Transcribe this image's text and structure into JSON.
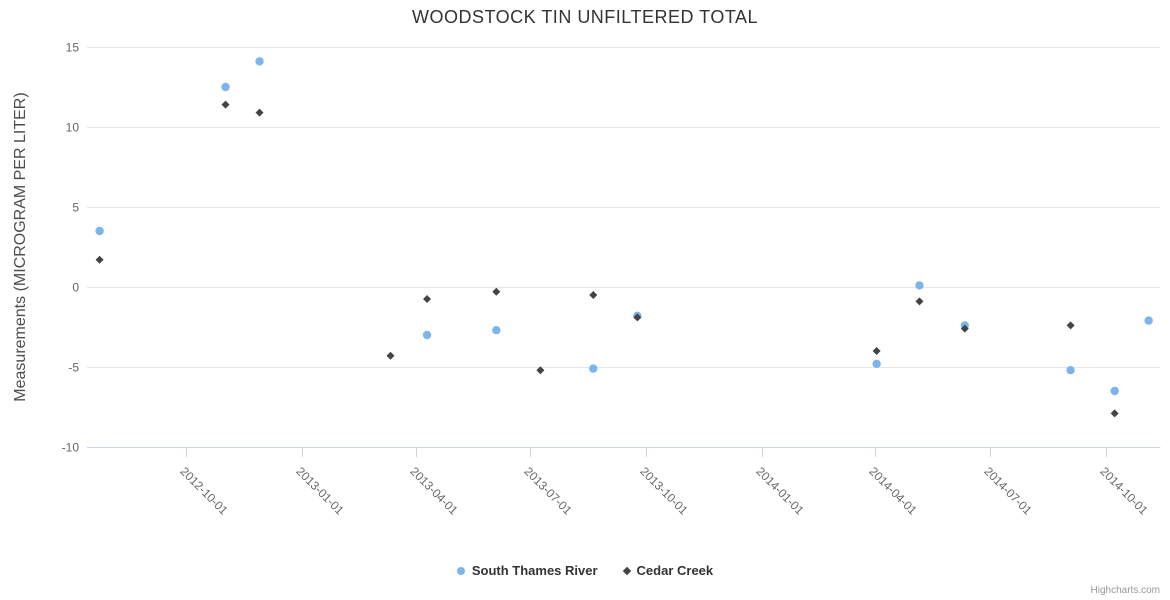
{
  "title": "WOODSTOCK TIN UNFILTERED TOTAL",
  "credit_label": "Highcharts.com",
  "colors": {
    "title": "#333333",
    "axis_title": "#4d4d4d",
    "tick_label": "#666666",
    "grid_line": "#e6e6e6",
    "axis_line": "#ccd6eb",
    "legend_text": "#333333",
    "credit": "#999999",
    "south_thames": "#7cb5ec",
    "cedar_creek": "#434348"
  },
  "chart_data": {
    "type": "scatter",
    "title": "WOODSTOCK TIN UNFILTERED TOTAL",
    "xlabel": "",
    "ylabel": "Measurements (MICROGRAM PER LITER)",
    "ylim": [
      -10,
      15
    ],
    "y_ticks": [
      15,
      10,
      5,
      0,
      -5,
      -10
    ],
    "x_ticks": [
      "2012-10-01",
      "2013-01-01",
      "2013-04-01",
      "2013-07-01",
      "2013-10-01",
      "2014-01-01",
      "2014-04-01",
      "2014-07-01",
      "2014-10-01"
    ],
    "x_range": [
      "2012-07-14",
      "2014-11-13"
    ],
    "grid": true,
    "legend_position": "bottom-center",
    "series": [
      {
        "name": "South Thames River",
        "marker": "circle",
        "color": "#7cb5ec",
        "points": [
          [
            "2012-07-24",
            3.5
          ],
          [
            "2012-11-01",
            12.5
          ],
          [
            "2012-11-28",
            14.1
          ],
          [
            "2013-04-10",
            -3.0
          ],
          [
            "2013-06-04",
            -2.7
          ],
          [
            "2013-08-20",
            -5.1
          ],
          [
            "2013-09-24",
            -1.8
          ],
          [
            "2014-04-02",
            -4.8
          ],
          [
            "2014-05-06",
            0.1
          ],
          [
            "2014-06-11",
            -2.4
          ],
          [
            "2014-09-03",
            -5.2
          ],
          [
            "2014-10-08",
            -6.5
          ],
          [
            "2014-11-04",
            -2.1
          ]
        ]
      },
      {
        "name": "Cedar Creek",
        "marker": "diamond",
        "color": "#434348",
        "points": [
          [
            "2012-07-24",
            1.7
          ],
          [
            "2012-11-01",
            11.4
          ],
          [
            "2012-11-28",
            10.9
          ],
          [
            "2013-03-12",
            -4.3
          ],
          [
            "2013-04-10",
            -0.75
          ],
          [
            "2013-06-04",
            -0.3
          ],
          [
            "2013-07-09",
            -5.2
          ],
          [
            "2013-08-20",
            -0.5
          ],
          [
            "2013-09-24",
            -1.9
          ],
          [
            "2014-04-02",
            -4.0
          ],
          [
            "2014-05-06",
            -0.9
          ],
          [
            "2014-06-11",
            -2.6
          ],
          [
            "2014-09-03",
            -2.4
          ],
          [
            "2014-10-08",
            -7.9
          ]
        ]
      }
    ]
  }
}
